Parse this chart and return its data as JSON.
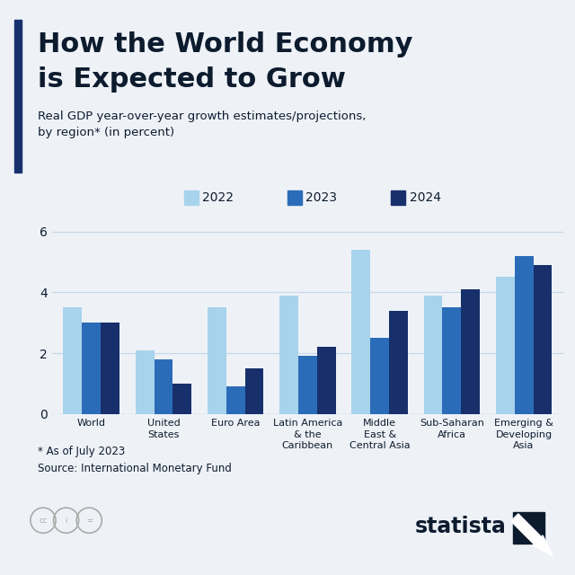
{
  "title_line1": "How the World Economy",
  "title_line2": "is Expected to Grow",
  "subtitle_line1": "Real GDP year-over-year growth estimates/projections,",
  "subtitle_line2": "by region* (in percent)",
  "footnote": "* As of July 2023",
  "source": "Source: International Monetary Fund",
  "legend_labels": [
    "2022",
    "2023",
    "2024"
  ],
  "categories": [
    "World",
    "United\nStates",
    "Euro Area",
    "Latin America\n& the\nCaribbean",
    "Middle\nEast &\nCentral Asia",
    "Sub-Saharan\nAfrica",
    "Emerging &\nDeveloping\nAsia"
  ],
  "values_2022": [
    3.5,
    2.1,
    3.5,
    3.9,
    5.4,
    3.9,
    4.5
  ],
  "values_2023": [
    3.0,
    1.8,
    0.9,
    1.9,
    2.5,
    3.5,
    5.2
  ],
  "values_2024": [
    3.0,
    1.0,
    1.5,
    2.2,
    3.4,
    4.1,
    4.9
  ],
  "ylim": [
    0,
    6.8
  ],
  "yticks": [
    0,
    2,
    4,
    6
  ],
  "bar_color_2022": "#a8d3ec",
  "bar_color_2023": "#2b6cb8",
  "bar_color_2024": "#17306b",
  "background_color": "#eef2f7",
  "title_color": "#0d1b2e",
  "accent_color": "#17306b",
  "grid_color": "#c8d8e8",
  "bar_width": 0.26,
  "title_fontsize": 22,
  "subtitle_fontsize": 9.5,
  "legend_fontsize": 10,
  "tick_fontsize": 8,
  "ytick_fontsize": 10,
  "footnote_fontsize": 8.5,
  "statista_fontsize": 17
}
